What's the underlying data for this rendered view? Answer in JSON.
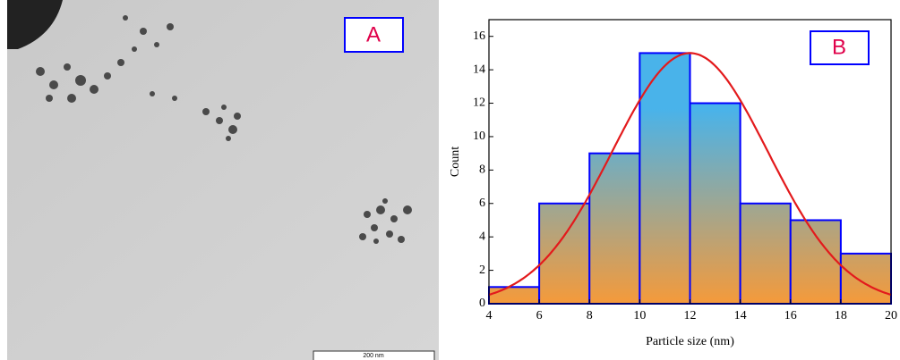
{
  "image_panel": {
    "label": "A",
    "scale_bar": "200 nm"
  },
  "chart_data": {
    "type": "histogram",
    "annotation": "B",
    "xlabel": "Particle size (nm)",
    "ylabel": "Count",
    "bins": [
      4,
      6,
      8,
      10,
      12,
      14,
      16,
      18,
      20
    ],
    "values": [
      1,
      6,
      9,
      15,
      12,
      6,
      5,
      3
    ],
    "edge_color": "#0000ff",
    "fill_colors": [
      "#f59a3a",
      "#49b3ea"
    ],
    "fit": {
      "type": "gaussian",
      "color": "#e31a1c",
      "amplitude": 15,
      "center": 12,
      "sigma": 3.1
    },
    "xlim": [
      4,
      20
    ],
    "xticks": [
      4,
      6,
      8,
      10,
      12,
      14,
      16,
      18,
      20
    ],
    "ylim": [
      0,
      17
    ],
    "yticks": [
      0,
      2,
      4,
      6,
      8,
      10,
      12,
      14,
      16
    ]
  }
}
